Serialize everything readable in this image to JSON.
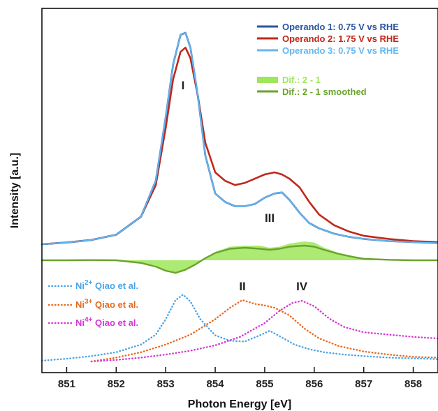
{
  "chart_data": {
    "type": "line",
    "xlabel": "Photon Energy [eV]",
    "ylabel": "Intensity [a.u.]",
    "xlim": [
      850.5,
      858.5
    ],
    "x_ticks": [
      851,
      852,
      853,
      854,
      855,
      856,
      857,
      858
    ],
    "y_ticks": false,
    "grid": false,
    "legend_top": {
      "placement": "top-right",
      "entries": [
        {
          "label": "Operando 1: 0.75 V vs RHE",
          "color": "#2b55a0"
        },
        {
          "label": "Operando 2: 1.75 V vs RHE",
          "color": "#c0281b"
        },
        {
          "label": "Operando 3: 0.75 V vs RHE",
          "color": "#64b6f0"
        },
        {
          "label": "Dif.: 2 - 1",
          "color": "#9ee65a"
        },
        {
          "label": "Dif.: 2 - 1 smoothed",
          "color": "#6aa32c"
        }
      ]
    },
    "legend_bottom": {
      "placement": "bottom-left",
      "entries": [
        {
          "ion": "Ni",
          "charge": "2+",
          "text": "Qiao et al.",
          "color": "#4aa3e8"
        },
        {
          "ion": "Ni",
          "charge": "3+",
          "text": "Qiao et al.",
          "color": "#e9681d"
        },
        {
          "ion": "Ni",
          "charge": "4+",
          "text": "Qiao et al.",
          "color": "#d636d6"
        }
      ]
    },
    "peak_labels": [
      {
        "label": "I",
        "x": 853.35
      },
      {
        "label": "II",
        "x": 854.55
      },
      {
        "label": "III",
        "x": 855.1
      },
      {
        "label": "IV",
        "x": 855.75
      }
    ],
    "series": [
      {
        "name": "Operando 1: 0.75 V vs RHE",
        "color": "#2b55a0",
        "width": 2.6,
        "x": [
          850.5,
          851.0,
          851.5,
          852.0,
          852.5,
          852.8,
          853.0,
          853.15,
          853.3,
          853.4,
          853.5,
          853.65,
          853.8,
          854.0,
          854.2,
          854.4,
          854.6,
          854.8,
          855.0,
          855.2,
          855.35,
          855.5,
          855.7,
          855.9,
          856.1,
          856.4,
          856.7,
          857.0,
          857.5,
          858.0,
          858.5
        ],
        "y": [
          0.0,
          0.008,
          0.02,
          0.045,
          0.13,
          0.3,
          0.6,
          0.85,
          0.99,
          1.0,
          0.93,
          0.7,
          0.42,
          0.24,
          0.2,
          0.18,
          0.18,
          0.19,
          0.22,
          0.24,
          0.245,
          0.21,
          0.15,
          0.1,
          0.075,
          0.05,
          0.035,
          0.025,
          0.015,
          0.01,
          0.005
        ]
      },
      {
        "name": "Operando 2: 1.75 V vs RHE",
        "color": "#c0281b",
        "width": 2.6,
        "x": [
          850.5,
          851.0,
          851.5,
          852.0,
          852.5,
          852.8,
          853.0,
          853.15,
          853.3,
          853.4,
          853.5,
          853.65,
          853.8,
          854.0,
          854.2,
          854.4,
          854.6,
          854.8,
          855.0,
          855.2,
          855.35,
          855.5,
          855.7,
          855.9,
          856.1,
          856.4,
          856.7,
          857.0,
          857.5,
          858.0,
          858.5
        ],
        "y": [
          0.0,
          0.008,
          0.02,
          0.045,
          0.13,
          0.28,
          0.55,
          0.78,
          0.91,
          0.93,
          0.88,
          0.7,
          0.48,
          0.34,
          0.3,
          0.28,
          0.29,
          0.31,
          0.33,
          0.34,
          0.33,
          0.31,
          0.27,
          0.2,
          0.14,
          0.09,
          0.06,
          0.04,
          0.025,
          0.015,
          0.01
        ]
      },
      {
        "name": "Operando 3: 0.75 V vs RHE",
        "color": "#64b6f0",
        "width": 2.0,
        "x": [
          850.5,
          851.0,
          851.5,
          852.0,
          852.5,
          852.8,
          853.0,
          853.15,
          853.3,
          853.4,
          853.5,
          853.65,
          853.8,
          854.0,
          854.2,
          854.4,
          854.6,
          854.8,
          855.0,
          855.2,
          855.35,
          855.5,
          855.7,
          855.9,
          856.1,
          856.4,
          856.7,
          857.0,
          857.5,
          858.0,
          858.5
        ],
        "y": [
          0.0,
          0.008,
          0.02,
          0.045,
          0.13,
          0.3,
          0.6,
          0.85,
          0.99,
          1.0,
          0.93,
          0.7,
          0.42,
          0.24,
          0.2,
          0.18,
          0.18,
          0.19,
          0.22,
          0.24,
          0.245,
          0.21,
          0.15,
          0.1,
          0.075,
          0.05,
          0.035,
          0.025,
          0.015,
          0.01,
          0.005
        ]
      },
      {
        "name": "Dif.: 2 - 1",
        "color": "#9ee65a",
        "fill": true,
        "x": [
          850.5,
          851.0,
          851.5,
          852.0,
          852.5,
          852.8,
          853.0,
          853.2,
          853.4,
          853.6,
          853.8,
          854.0,
          854.3,
          854.6,
          854.9,
          855.1,
          855.3,
          855.5,
          855.8,
          856.0,
          856.2,
          856.5,
          856.8,
          857.0,
          857.5,
          858.0,
          858.5
        ],
        "y": [
          0.0,
          0.0,
          0.003,
          0.004,
          -0.02,
          -0.05,
          -0.1,
          -0.13,
          -0.1,
          -0.05,
          0.02,
          0.08,
          0.13,
          0.14,
          0.14,
          0.12,
          0.13,
          0.16,
          0.18,
          0.17,
          0.12,
          0.07,
          0.04,
          0.02,
          0.01,
          0.0,
          0.0
        ]
      },
      {
        "name": "Dif.: 2 - 1 smoothed",
        "color": "#6aa32c",
        "width": 2.4,
        "x": [
          850.5,
          851.0,
          851.5,
          852.0,
          852.5,
          852.8,
          853.0,
          853.2,
          853.4,
          853.6,
          853.8,
          854.0,
          854.3,
          854.6,
          854.9,
          855.1,
          855.3,
          855.5,
          855.8,
          856.0,
          856.2,
          856.5,
          856.8,
          857.0,
          857.5,
          858.0,
          858.5
        ],
        "y": [
          0.0,
          0.0,
          0.002,
          0.0,
          -0.025,
          -0.06,
          -0.1,
          -0.12,
          -0.09,
          -0.04,
          0.02,
          0.07,
          0.11,
          0.12,
          0.11,
          0.1,
          0.11,
          0.13,
          0.14,
          0.13,
          0.1,
          0.06,
          0.03,
          0.015,
          0.005,
          0.0,
          0.0
        ]
      },
      {
        "name": "Ni2+ Qiao et al.",
        "color": "#4aa3e8",
        "dotted": true,
        "x": [
          850.5,
          851.0,
          851.5,
          852.0,
          852.5,
          852.8,
          853.0,
          853.2,
          853.35,
          853.5,
          853.7,
          854.0,
          854.3,
          854.6,
          854.9,
          855.1,
          855.3,
          855.6,
          855.9,
          856.2,
          856.6,
          857.0,
          857.5,
          858.0,
          858.5
        ],
        "y": [
          0.01,
          0.035,
          0.07,
          0.12,
          0.22,
          0.35,
          0.55,
          0.8,
          0.87,
          0.78,
          0.55,
          0.34,
          0.27,
          0.26,
          0.34,
          0.4,
          0.33,
          0.22,
          0.16,
          0.12,
          0.09,
          0.07,
          0.05,
          0.04,
          0.03
        ]
      },
      {
        "name": "Ni3+ Qiao et al.",
        "color": "#e9681d",
        "dotted": true,
        "x": [
          851.5,
          852.0,
          852.5,
          853.0,
          853.5,
          854.0,
          854.3,
          854.55,
          854.8,
          855.0,
          855.2,
          855.5,
          855.8,
          856.1,
          856.5,
          857.0,
          857.5,
          858.0,
          858.5
        ],
        "y": [
          0.0,
          0.05,
          0.12,
          0.22,
          0.35,
          0.55,
          0.7,
          0.8,
          0.75,
          0.73,
          0.7,
          0.6,
          0.43,
          0.3,
          0.2,
          0.13,
          0.09,
          0.06,
          0.05
        ]
      },
      {
        "name": "Ni4+ Qiao et al.",
        "color": "#d636d6",
        "dotted": true,
        "x": [
          851.5,
          852.0,
          852.5,
          853.0,
          853.5,
          854.0,
          854.5,
          855.0,
          855.3,
          855.55,
          855.75,
          856.0,
          856.3,
          856.6,
          857.0,
          857.5,
          858.0,
          858.5
        ],
        "y": [
          0.0,
          0.02,
          0.05,
          0.09,
          0.14,
          0.21,
          0.32,
          0.5,
          0.66,
          0.76,
          0.79,
          0.72,
          0.56,
          0.45,
          0.38,
          0.35,
          0.32,
          0.3
        ]
      }
    ]
  }
}
